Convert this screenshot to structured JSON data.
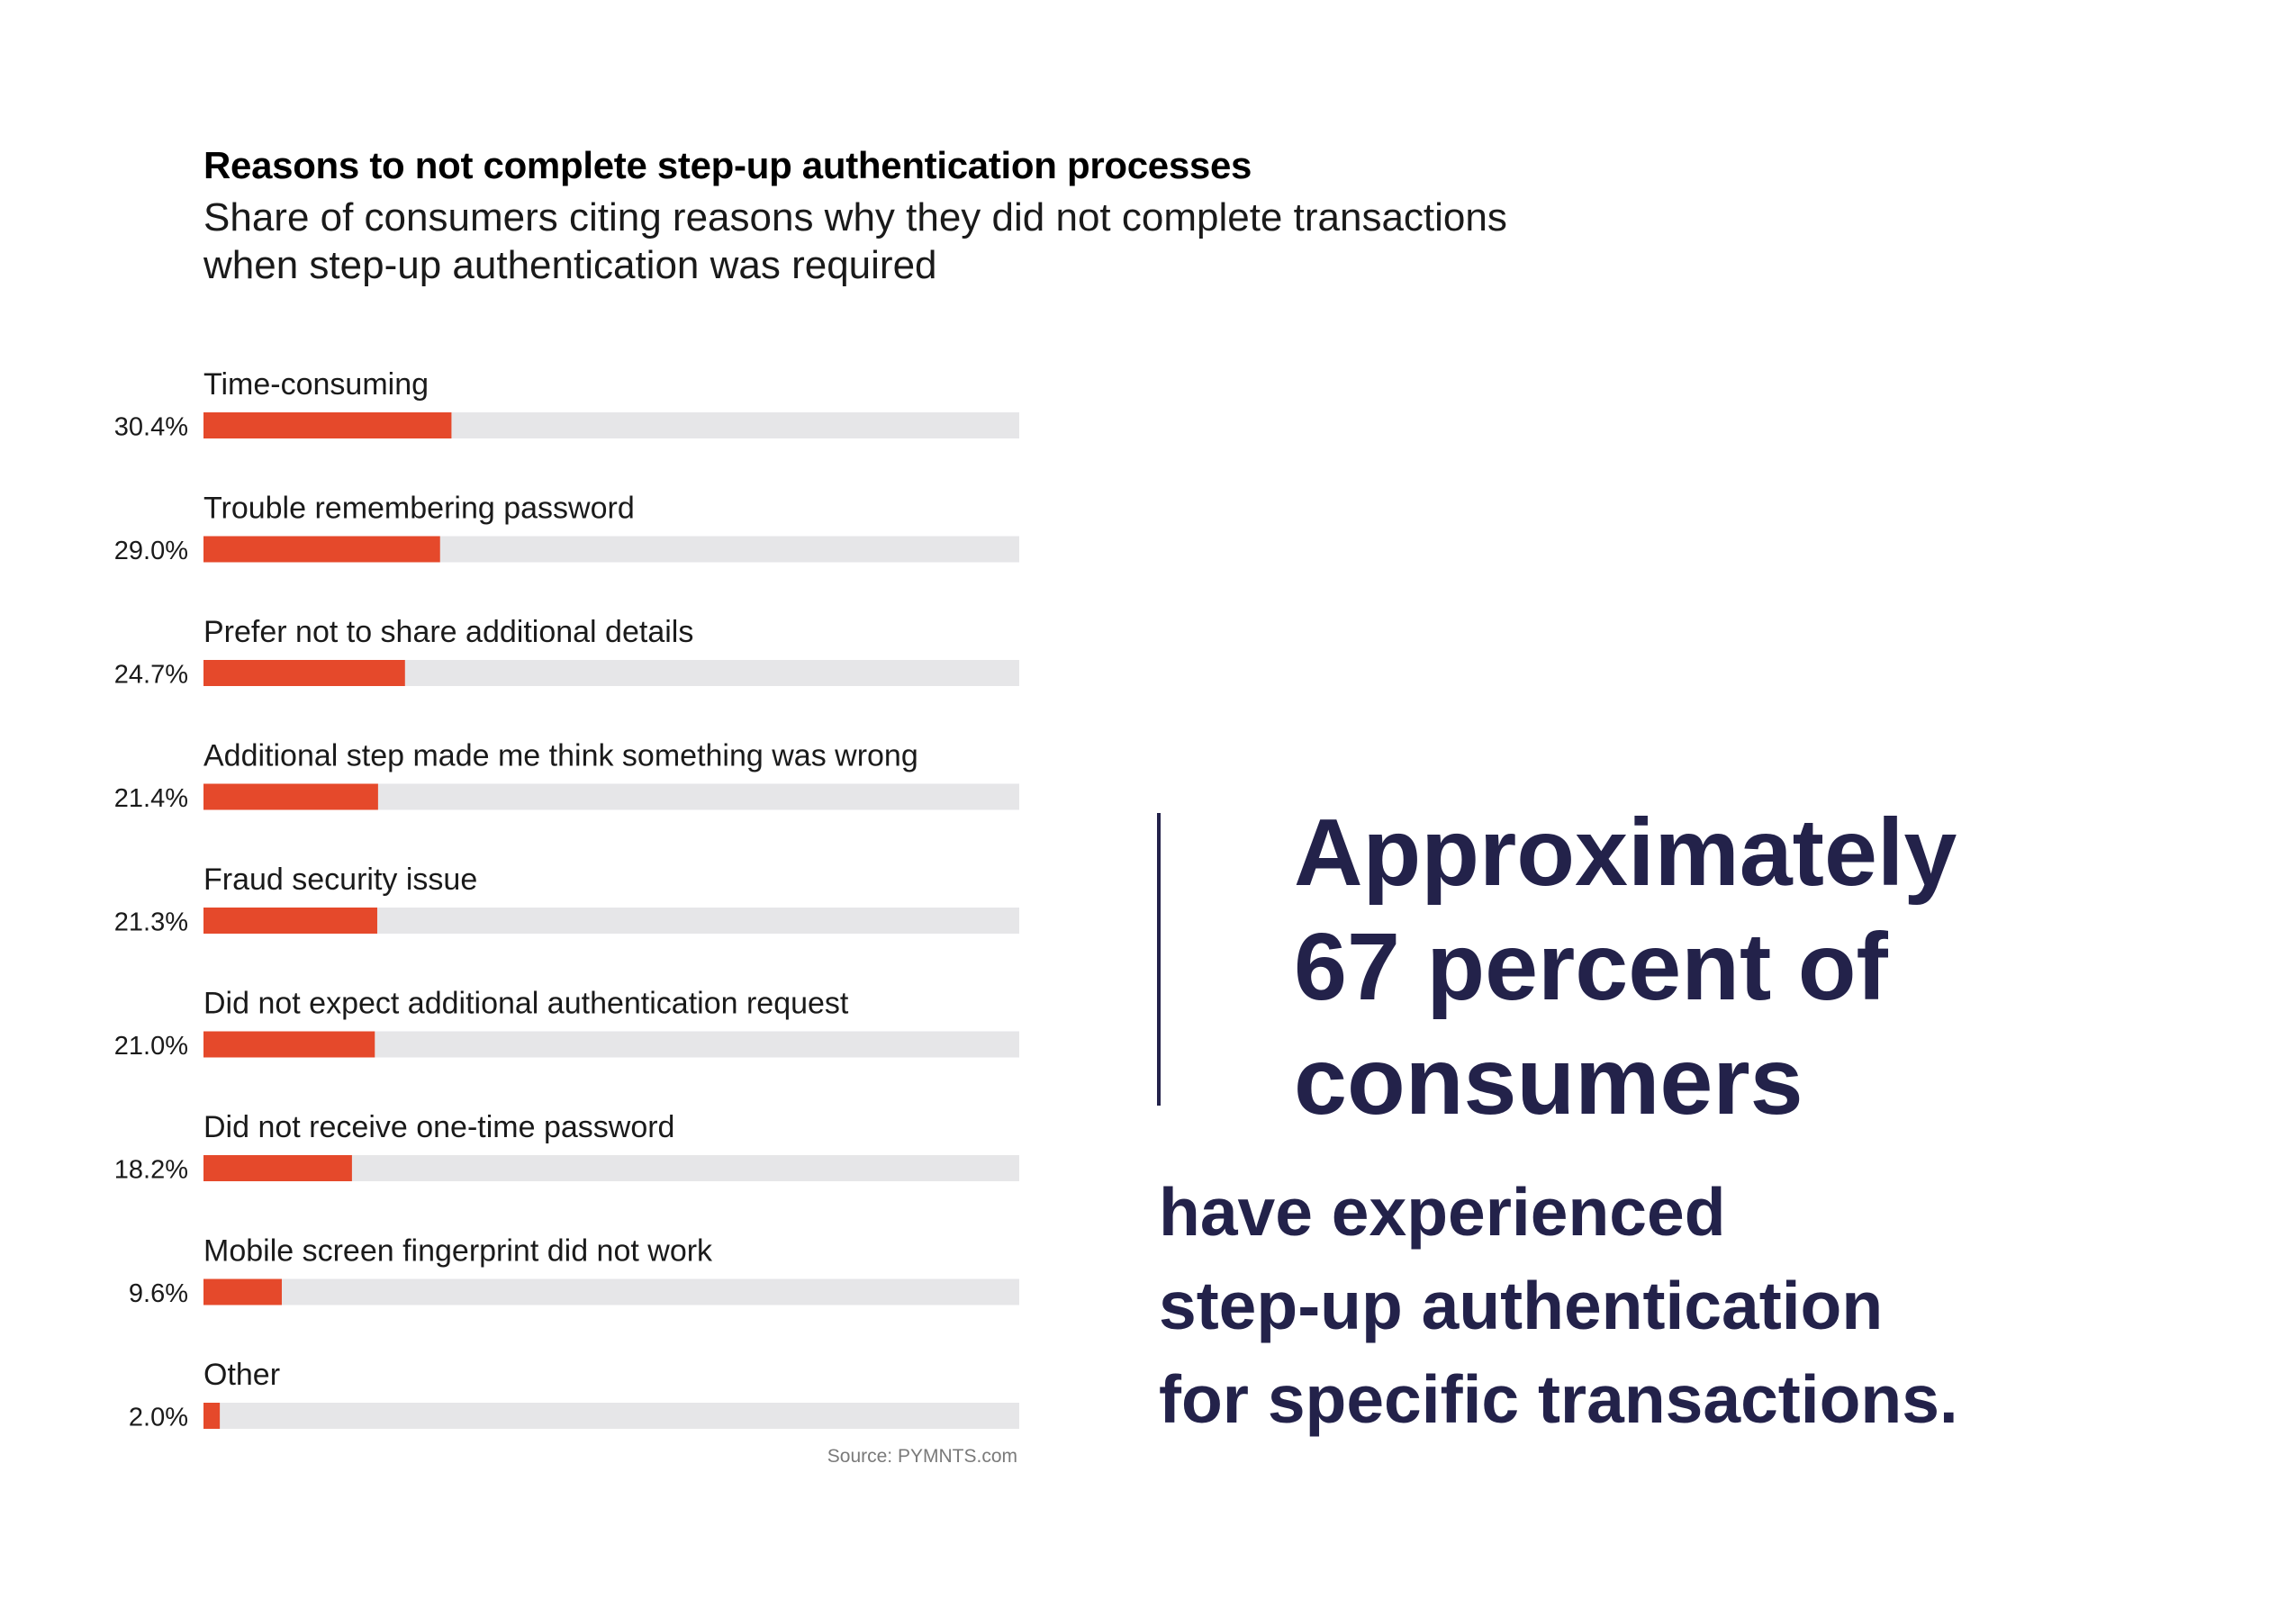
{
  "chart_data": {
    "type": "bar",
    "orientation": "horizontal",
    "title": "Reasons to not complete step-up authentication processes",
    "subtitle": "Share of consumers citing reasons why they did not complete transactions when step-up authentication was required",
    "categories": [
      "Time-consuming",
      "Trouble remembering password",
      "Prefer not to share additional details",
      "Additional step made me think something was wrong",
      "Fraud security issue",
      "Did not expect additional authentication request",
      "Did not receive one-time password",
      "Mobile screen fingerprint did not work",
      "Other"
    ],
    "values": [
      30.4,
      29.0,
      24.7,
      21.4,
      21.3,
      21.0,
      18.2,
      9.6,
      2.0
    ],
    "value_labels": [
      "30.4%",
      "29.0%",
      "24.7%",
      "21.4%",
      "21.3%",
      "21.0%",
      "18.2%",
      "9.6%",
      "2.0%"
    ],
    "xlim": [
      0,
      100
    ],
    "unit": "%",
    "source": "Source: PYMNTS.com",
    "colors": {
      "bar": "#e5492b",
      "track": "#e6e6e8",
      "label": "#1a1a1a"
    }
  },
  "callout": {
    "headline_lines": [
      "Approximately",
      "67 percent of",
      "consumers"
    ],
    "body_lines": [
      "have experienced",
      "step-up authentication",
      "for specific transactions."
    ],
    "color": "#23224a"
  }
}
